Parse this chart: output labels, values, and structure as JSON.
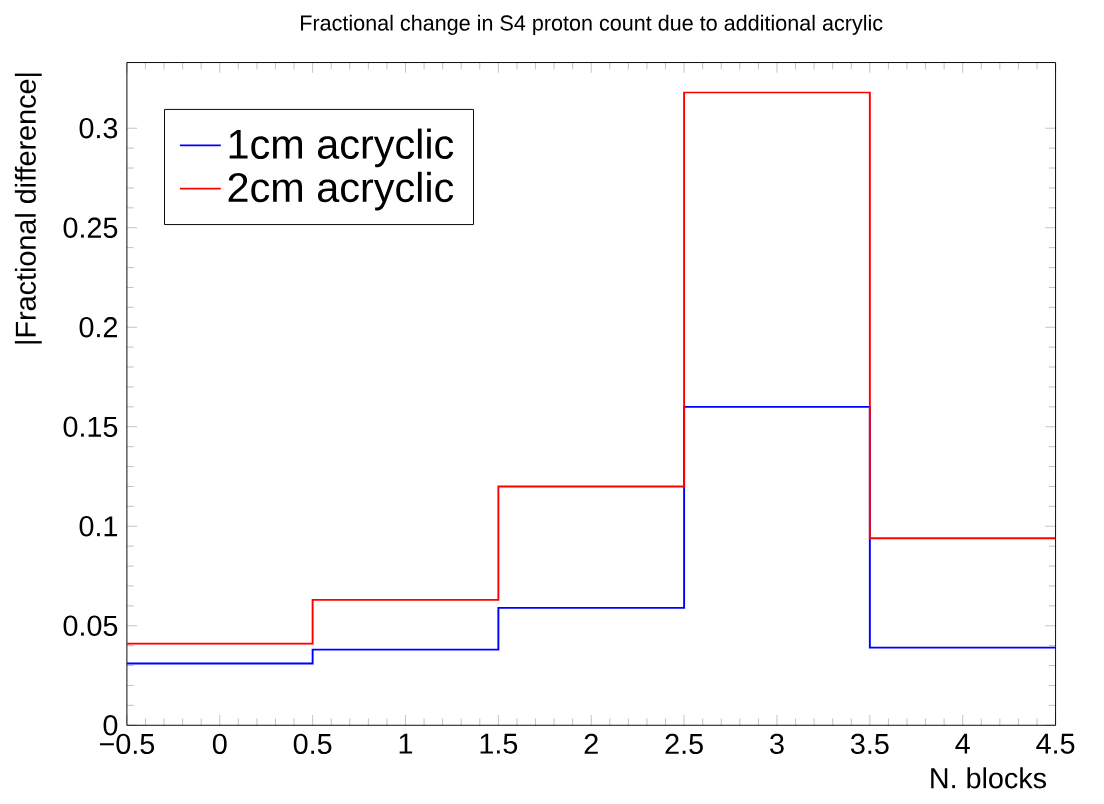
{
  "chart_data": {
    "type": "histogram",
    "title": "Fractional change in S4 proton count due to additional acrylic",
    "xlabel": "N. blocks",
    "ylabel": "|Fractional difference|",
    "bins": [
      -0.5,
      0.5,
      1.5,
      2.5,
      3.5,
      4.5
    ],
    "series": [
      {
        "name": "1cm acryclic",
        "color": "#0000ff",
        "values": [
          0.031,
          0.038,
          0.059,
          0.16,
          0.039
        ]
      },
      {
        "name": "2cm acryclic",
        "color": "#ff0000",
        "values": [
          0.041,
          0.063,
          0.12,
          0.318,
          0.094
        ]
      }
    ],
    "xlim": [
      -0.5,
      4.5
    ],
    "ylim": [
      0,
      0.333
    ],
    "xticks": [
      {
        "value": -0.5,
        "label": "−0.5"
      },
      0,
      0.5,
      1,
      1.5,
      2,
      2.5,
      3,
      3.5,
      4,
      4.5
    ],
    "yticks": [
      0,
      0.05,
      0.1,
      0.15,
      0.2,
      0.25,
      0.3
    ],
    "legend": "top left",
    "grid": false
  }
}
